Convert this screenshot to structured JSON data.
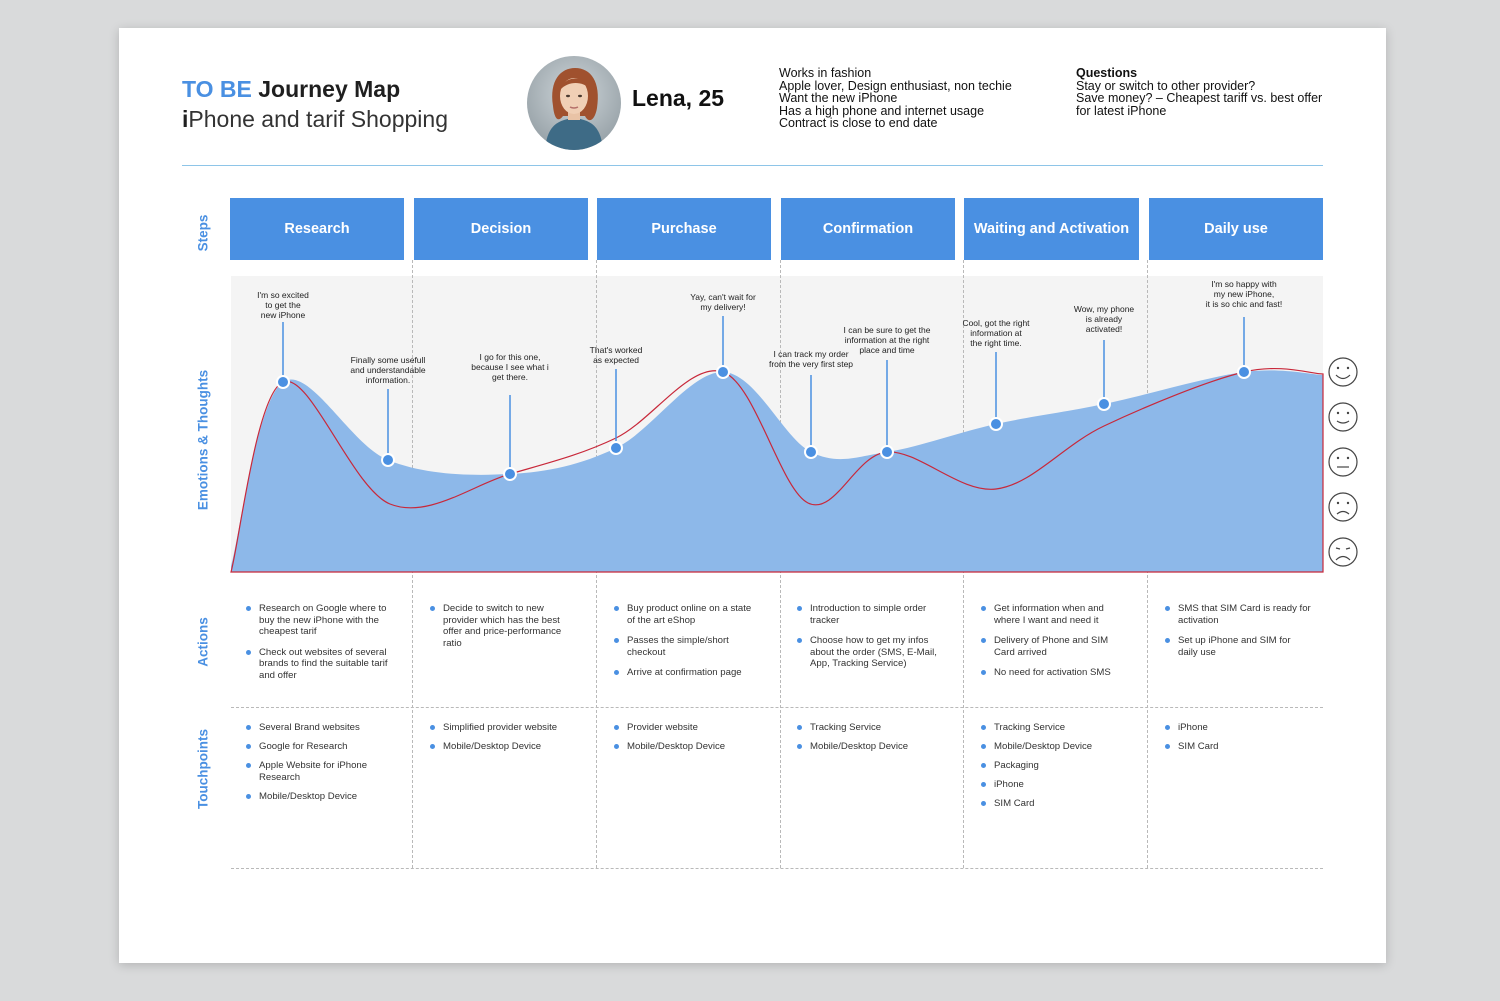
{
  "header": {
    "title_accent": "TO BE",
    "title_rest": "Journey Map",
    "subtitle_bold": "i",
    "subtitle_rest": "Phone and tarif Shopping"
  },
  "persona": {
    "name": "Lena, 25",
    "facts": [
      "Works in fashion",
      "Apple lover, Design enthusiast, non techie",
      "Want the new iPhone",
      "Has a high phone and internet usage",
      "Contract is close to end date"
    ],
    "questions_heading": "Questions",
    "questions": [
      "Stay or switch to other provider?",
      "Save money? – Cheapest tariff vs. best offer for latest iPhone"
    ]
  },
  "row_labels": {
    "steps": "Steps",
    "emotions": "Emotions & Thoughts",
    "actions": "Actions",
    "touchpoints": "Touchpoints"
  },
  "steps": [
    "Research",
    "Decision",
    "Purchase",
    "Confirmation",
    "Waiting and Activation",
    "Daily use"
  ],
  "thoughts": [
    "I'm so excited\nto get the\nnew iPhone",
    "Finally some usefull\nand understandable\ninformation.",
    "I go for this one,\nbecause I see what i\nget there.",
    "That's worked\nas expected",
    "Yay, can't wait for\nmy delivery!",
    "I can track my order\nfrom the very first step",
    "I can be sure to get the\ninformation at the right\nplace and time",
    "Cool, got the right\ninformation at\nthe right time.",
    "Wow, my phone\nis already\nactivated!",
    "I'm so happy with\nmy new iPhone,\nit is so chic and fast!"
  ],
  "emotion_curve": {
    "scale": [
      "very happy",
      "happy",
      "neutral",
      "sad",
      "very sad"
    ],
    "points": [
      {
        "thought": 1,
        "level": 0.95
      },
      {
        "thought": 2,
        "level": 0.56
      },
      {
        "thought": 3,
        "level": 0.49
      },
      {
        "thought": 4,
        "level": 0.62
      },
      {
        "thought": 5,
        "level": 1.0
      },
      {
        "thought": 6,
        "level": 0.6
      },
      {
        "thought": 7,
        "level": 0.6
      },
      {
        "thought": 8,
        "level": 0.74
      },
      {
        "thought": 9,
        "level": 0.84
      },
      {
        "thought": 10,
        "level": 1.0
      }
    ],
    "fill_color": "#8db8e9",
    "line_color": "#c8283a",
    "point_color": "#4a90e2",
    "icons": [
      "very-happy-face-icon",
      "happy-face-icon",
      "neutral-face-icon",
      "sad-face-icon",
      "very-sad-face-icon"
    ]
  },
  "actions": [
    [
      "Research on Google where to buy the new iPhone with the cheapest tarif",
      "Check out websites of several brands to find the suitable tarif and offer"
    ],
    [
      "Decide to switch to new provider which has the best offer and price-performance ratio"
    ],
    [
      "Buy product online on a state of the art eShop",
      "Passes the simple/short checkout",
      "Arrive at confirmation page"
    ],
    [
      "Introduction to simple order tracker",
      "Choose how to get my infos about the order (SMS, E-Mail, App, Tracking Service)"
    ],
    [
      "Get information when and where I want and need it",
      "Delivery of Phone and SIM Card arrived",
      "No need for activation SMS"
    ],
    [
      "SMS that SIM Card is ready for activation",
      "Set up iPhone and SIM for daily use"
    ]
  ],
  "touchpoints": [
    [
      "Several Brand websites",
      "Google for Research",
      "Apple Website for iPhone Research",
      "Mobile/Desktop Device"
    ],
    [
      "Simplified provider website",
      "Mobile/Desktop Device"
    ],
    [
      "Provider website",
      "Mobile/Desktop Device"
    ],
    [
      "Tracking Service",
      "Mobile/Desktop Device"
    ],
    [
      "Tracking Service",
      "Mobile/Desktop Device",
      "Packaging",
      "iPhone",
      "SIM Card"
    ],
    [
      "iPhone",
      "SIM Card"
    ]
  ],
  "colors": {
    "accent": "#4a90e2",
    "step_bg": "#4a90e2",
    "separator": "#8ec5e8"
  }
}
